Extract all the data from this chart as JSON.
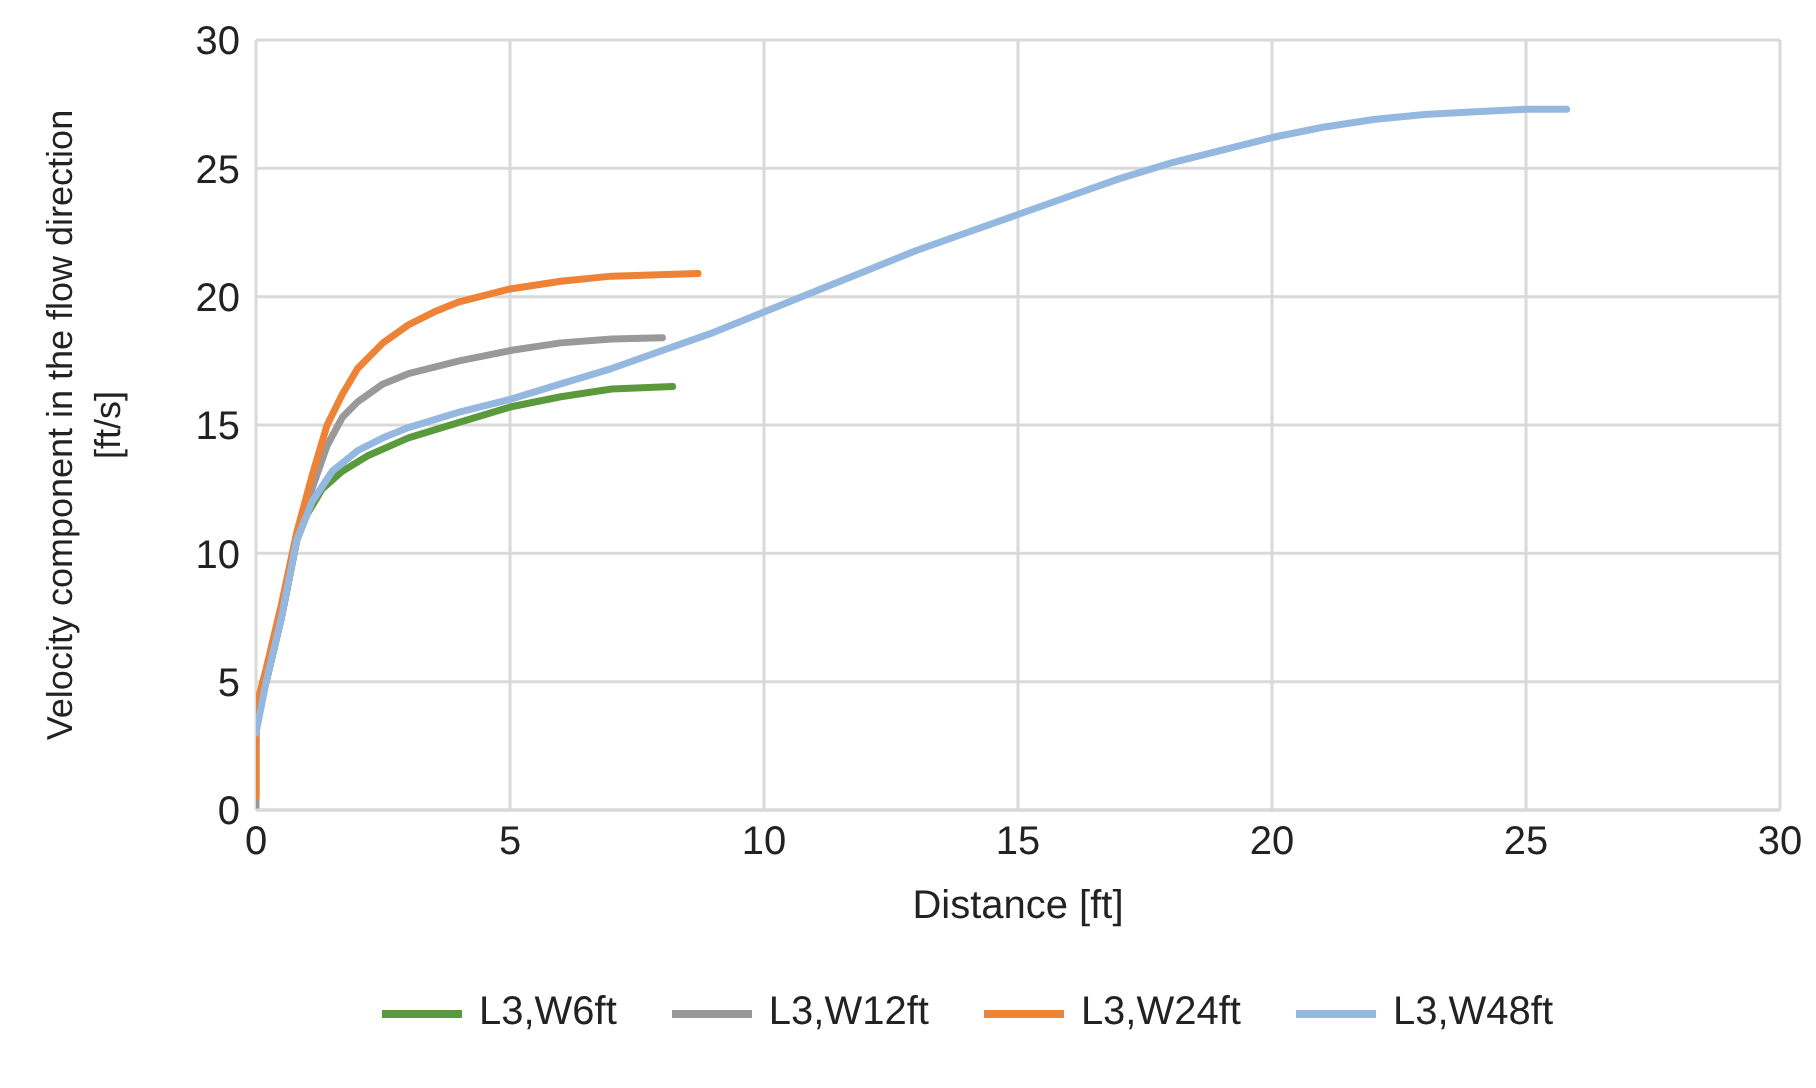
{
  "chart_data": {
    "type": "line",
    "xlabel": "Distance [ft]",
    "ylabel": "Velocity component in the flow direction [ft/s]",
    "xlim": [
      0,
      30
    ],
    "xticks": [
      0,
      5,
      10,
      15,
      20,
      25,
      30
    ],
    "ylim": [
      0,
      30
    ],
    "yticks": [
      0,
      5,
      10,
      15,
      20,
      25,
      30
    ],
    "grid": true,
    "legend": "bottom",
    "marker": "none",
    "line_style": "solid",
    "series": [
      {
        "name": "L3,W6ft",
        "color": "#5b9a3c",
        "x": [
          0.2,
          0.5,
          0.8,
          1.0,
          1.3,
          1.7,
          2.2,
          3,
          4,
          5,
          6,
          7,
          8.2
        ],
        "values": [
          5,
          7.5,
          10.5,
          11.5,
          12.5,
          13.2,
          13.8,
          14.5,
          15.1,
          15.7,
          16.1,
          16.4,
          16.5
        ]
      },
      {
        "name": "L3,W12ft",
        "color": "#999999",
        "x": [
          0,
          0,
          0.2,
          0.5,
          0.8,
          1.1,
          1.4,
          1.7,
          2,
          2.5,
          3,
          4,
          5,
          6,
          7,
          8
        ],
        "values": [
          0,
          3.5,
          5,
          7.5,
          10.5,
          12.5,
          14.2,
          15.3,
          15.9,
          16.6,
          17,
          17.5,
          17.9,
          18.2,
          18.35,
          18.4
        ]
      },
      {
        "name": "L3,W24ft",
        "color": "#ee8236",
        "x": [
          0,
          0,
          0.2,
          0.5,
          0.8,
          1.1,
          1.4,
          1.7,
          2,
          2.5,
          3,
          3.5,
          4,
          5,
          6,
          7,
          8.7
        ],
        "values": [
          0.5,
          4,
          5.5,
          8,
          10.8,
          13,
          15,
          16.2,
          17.2,
          18.2,
          18.9,
          19.4,
          19.8,
          20.3,
          20.6,
          20.8,
          20.9
        ]
      },
      {
        "name": "L3,W48ft",
        "color": "#95b8e0",
        "x": [
          0,
          0.2,
          0.5,
          0.8,
          1.1,
          1.5,
          2,
          2.5,
          3,
          4,
          5,
          6,
          7,
          8,
          9,
          10,
          11,
          12,
          13,
          14,
          15,
          16,
          17,
          18,
          19,
          20,
          21,
          22,
          23,
          24,
          25,
          25.8
        ],
        "values": [
          3,
          5,
          7.5,
          10.5,
          12,
          13.2,
          14,
          14.5,
          14.9,
          15.5,
          16,
          16.6,
          17.2,
          17.9,
          18.6,
          19.4,
          20.2,
          21,
          21.8,
          22.5,
          23.2,
          23.9,
          24.6,
          25.2,
          25.7,
          26.2,
          26.6,
          26.9,
          27.1,
          27.2,
          27.3,
          27.3
        ]
      }
    ]
  }
}
